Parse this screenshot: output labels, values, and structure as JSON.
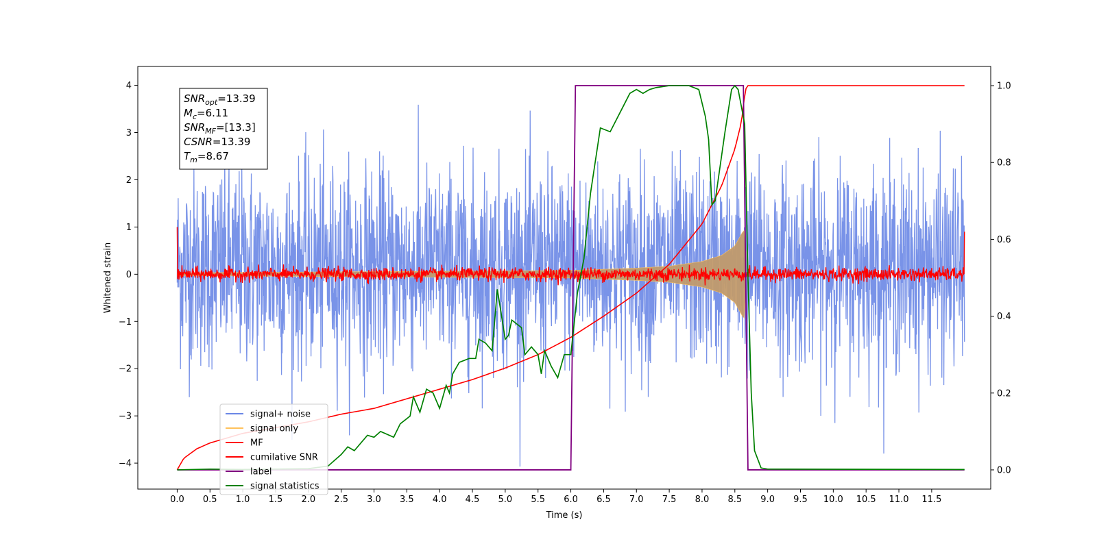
{
  "chart_data": {
    "type": "line",
    "xlabel": "Time (s)",
    "ylabel": "Whitened strain",
    "xlim": [
      -0.6,
      12.4
    ],
    "ylim": [
      -4.55,
      4.4
    ],
    "y2lim": [
      -0.05,
      1.05
    ],
    "x_ticks": [
      0.0,
      0.5,
      1.0,
      1.5,
      2.0,
      2.5,
      3.0,
      3.5,
      4.0,
      4.5,
      5.0,
      5.5,
      6.0,
      6.5,
      7.0,
      7.5,
      8.0,
      8.5,
      9.0,
      9.5,
      10.0,
      10.5,
      11.0,
      11.5
    ],
    "x_tick_labels": [
      "0.0",
      "0.5",
      "1.0",
      "1.5",
      "2.0",
      "2.5",
      "3.0",
      "3.5",
      "4.0",
      "4.5",
      "5.0",
      "5.5",
      "6.0",
      "6.5",
      "7.0",
      "7.5",
      "8.0",
      "8.5",
      "9.0",
      "9.5",
      "10.0",
      "10.5",
      "11.0",
      "11.5"
    ],
    "y_ticks": [
      4,
      3,
      2,
      1,
      0,
      -1,
      -2,
      -3,
      -4
    ],
    "y_tick_labels": [
      "4",
      "3",
      "2",
      "1",
      "0",
      "−1",
      "−2",
      "−3",
      "−4"
    ],
    "y2_ticks": [
      1.0,
      0.8,
      0.6,
      0.4,
      0.2,
      0.0
    ],
    "y2_tick_labels": [
      "1.0",
      "0.8",
      "0.6",
      "0.4",
      "0.2",
      "0.0"
    ],
    "grid": false,
    "legend_position": "lower-left",
    "legend": [
      {
        "name": "signal+ noise",
        "color": "#6a87e6"
      },
      {
        "name": "signal only",
        "color": "#ffc15a"
      },
      {
        "name": "MF",
        "color": "#ff0000"
      },
      {
        "name": "cumilative SNR",
        "color": "#ff0000"
      },
      {
        "name": "label",
        "color": "#800080"
      },
      {
        "name": "signal statistics",
        "color": "#008000"
      }
    ],
    "annotation": [
      {
        "base": "SNR",
        "sub": "opt",
        "value": "=13.39"
      },
      {
        "base": "M",
        "sub": "c",
        "value": "=6.11"
      },
      {
        "base": "SNR",
        "sub": "MF",
        "value": "=[13.3]"
      },
      {
        "base": "CSNR",
        "sub": "",
        "value": "=13.39"
      },
      {
        "base": "T",
        "sub": "m",
        "value": "=8.67"
      }
    ],
    "noise": {
      "x_start": 0.0,
      "x_end": 12.0,
      "amplitude_std": 1.05,
      "typical_range": [
        -3.0,
        3.5
      ]
    },
    "signal_only": {
      "x_start": 0.0,
      "merger_time": 8.67,
      "envelope": [
        [
          0.0,
          0.03
        ],
        [
          6.0,
          0.08
        ],
        [
          7.0,
          0.13
        ],
        [
          7.5,
          0.17
        ],
        [
          8.0,
          0.27
        ],
        [
          8.3,
          0.4
        ],
        [
          8.5,
          0.6
        ],
        [
          8.62,
          0.9
        ],
        [
          8.66,
          0.95
        ],
        [
          8.68,
          0.0
        ]
      ]
    },
    "mf": {
      "x_start": 0.0,
      "x_end": 12.0,
      "amplitude": 0.1
    },
    "cumulative_snr": {
      "axis": "right",
      "points": [
        [
          0.0,
          0.0
        ],
        [
          0.1,
          0.03
        ],
        [
          0.3,
          0.055
        ],
        [
          0.5,
          0.07
        ],
        [
          1.0,
          0.095
        ],
        [
          1.5,
          0.11
        ],
        [
          2.0,
          0.125
        ],
        [
          2.5,
          0.145
        ],
        [
          3.0,
          0.16
        ],
        [
          3.5,
          0.185
        ],
        [
          4.0,
          0.21
        ],
        [
          4.5,
          0.235
        ],
        [
          5.0,
          0.265
        ],
        [
          5.5,
          0.3
        ],
        [
          6.0,
          0.345
        ],
        [
          6.5,
          0.4
        ],
        [
          7.0,
          0.46
        ],
        [
          7.5,
          0.535
        ],
        [
          8.0,
          0.64
        ],
        [
          8.3,
          0.74
        ],
        [
          8.5,
          0.835
        ],
        [
          8.6,
          0.905
        ],
        [
          8.66,
          0.99
        ],
        [
          8.7,
          1.0
        ],
        [
          12.0,
          1.0
        ]
      ]
    },
    "label_series": {
      "axis": "right",
      "points": [
        [
          0.0,
          0.0
        ],
        [
          6.0,
          0.0
        ],
        [
          6.07,
          1.0
        ],
        [
          8.63,
          1.0
        ],
        [
          8.7,
          0.0
        ],
        [
          12.0,
          0.0
        ]
      ]
    },
    "signal_statistics": {
      "axis": "right",
      "points": [
        [
          0.0,
          0.0
        ],
        [
          0.5,
          0.002
        ],
        [
          1.0,
          0.001
        ],
        [
          1.5,
          0.002
        ],
        [
          2.0,
          0.003
        ],
        [
          2.3,
          0.01
        ],
        [
          2.5,
          0.04
        ],
        [
          2.6,
          0.06
        ],
        [
          2.7,
          0.05
        ],
        [
          2.9,
          0.09
        ],
        [
          3.0,
          0.085
        ],
        [
          3.1,
          0.1
        ],
        [
          3.3,
          0.085
        ],
        [
          3.4,
          0.12
        ],
        [
          3.55,
          0.14
        ],
        [
          3.6,
          0.19
        ],
        [
          3.7,
          0.15
        ],
        [
          3.8,
          0.21
        ],
        [
          3.9,
          0.2
        ],
        [
          4.0,
          0.16
        ],
        [
          4.1,
          0.22
        ],
        [
          4.15,
          0.2
        ],
        [
          4.2,
          0.25
        ],
        [
          4.3,
          0.28
        ],
        [
          4.45,
          0.29
        ],
        [
          4.55,
          0.29
        ],
        [
          4.6,
          0.34
        ],
        [
          4.7,
          0.33
        ],
        [
          4.8,
          0.31
        ],
        [
          4.88,
          0.47
        ],
        [
          5.0,
          0.34
        ],
        [
          5.05,
          0.35
        ],
        [
          5.1,
          0.39
        ],
        [
          5.25,
          0.37
        ],
        [
          5.3,
          0.3
        ],
        [
          5.4,
          0.32
        ],
        [
          5.5,
          0.3
        ],
        [
          5.55,
          0.25
        ],
        [
          5.6,
          0.31
        ],
        [
          5.7,
          0.27
        ],
        [
          5.8,
          0.24
        ],
        [
          5.9,
          0.3
        ],
        [
          6.0,
          0.3
        ],
        [
          6.1,
          0.46
        ],
        [
          6.2,
          0.55
        ],
        [
          6.3,
          0.72
        ],
        [
          6.45,
          0.89
        ],
        [
          6.6,
          0.88
        ],
        [
          6.75,
          0.93
        ],
        [
          6.9,
          0.98
        ],
        [
          7.0,
          0.99
        ],
        [
          7.1,
          0.98
        ],
        [
          7.2,
          0.99
        ],
        [
          7.3,
          0.995
        ],
        [
          7.5,
          1.0
        ],
        [
          7.8,
          1.0
        ],
        [
          7.95,
          0.99
        ],
        [
          8.05,
          0.92
        ],
        [
          8.1,
          0.86
        ],
        [
          8.15,
          0.69
        ],
        [
          8.2,
          0.7
        ],
        [
          8.35,
          0.88
        ],
        [
          8.45,
          0.99
        ],
        [
          8.5,
          1.0
        ],
        [
          8.55,
          0.99
        ],
        [
          8.65,
          0.9
        ],
        [
          8.7,
          0.5
        ],
        [
          8.75,
          0.2
        ],
        [
          8.8,
          0.05
        ],
        [
          8.9,
          0.005
        ],
        [
          9.0,
          0.002
        ],
        [
          12.0,
          0.001
        ]
      ]
    }
  }
}
